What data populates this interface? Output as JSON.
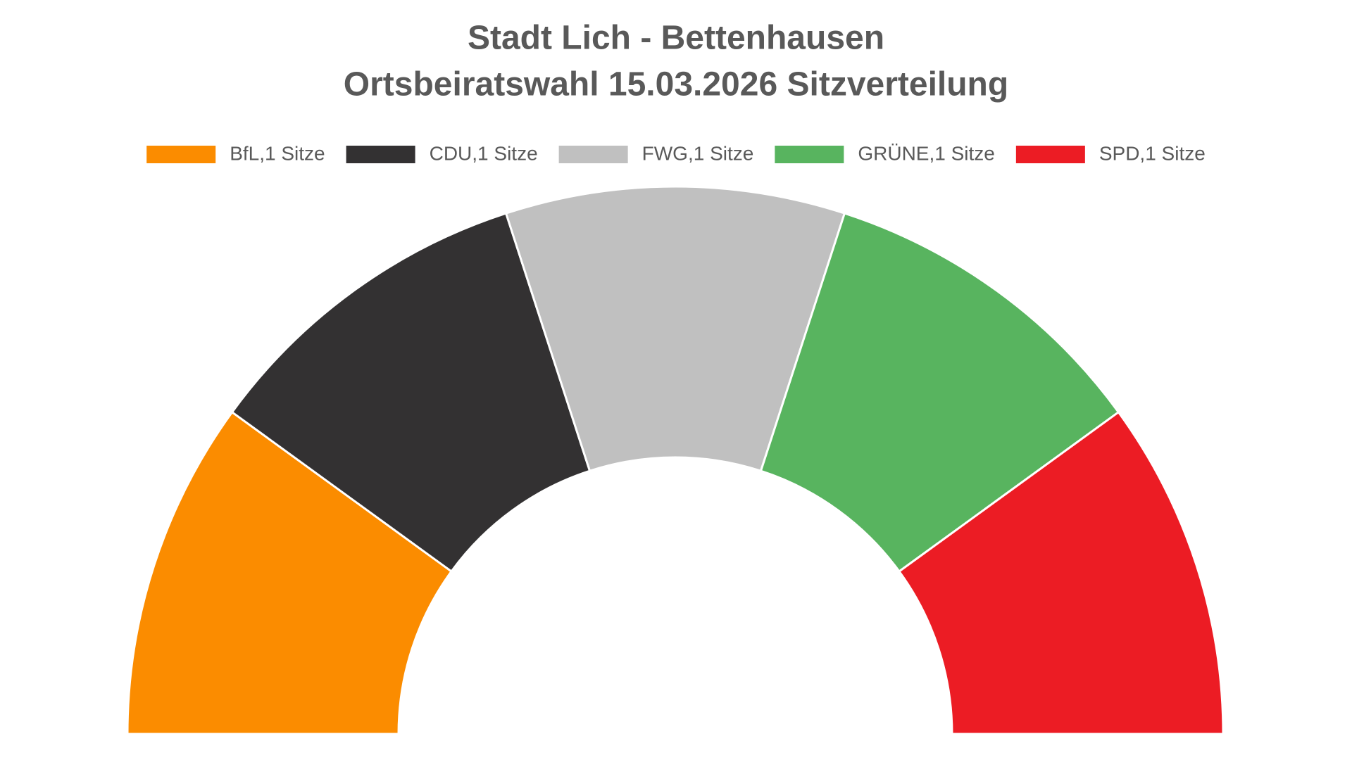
{
  "chart_data": {
    "type": "semicircle",
    "title": "Stadt Lich - Bettenhausen",
    "subtitle": "Ortsbeiratswahl 15.03.2026 Sitzverteilung",
    "categories": [
      "BfL,1 Sitze",
      "CDU,1 Sitze",
      "FWG,1 Sitze",
      "GRÜNE,1 Sitze",
      "SPD,1 Sitze"
    ],
    "values": [
      1,
      1,
      1,
      1,
      1
    ],
    "colors": [
      "#fb8c00",
      "#333132",
      "#c0c0c0",
      "#58b45f",
      "#ec1c24"
    ],
    "legend": "top"
  }
}
